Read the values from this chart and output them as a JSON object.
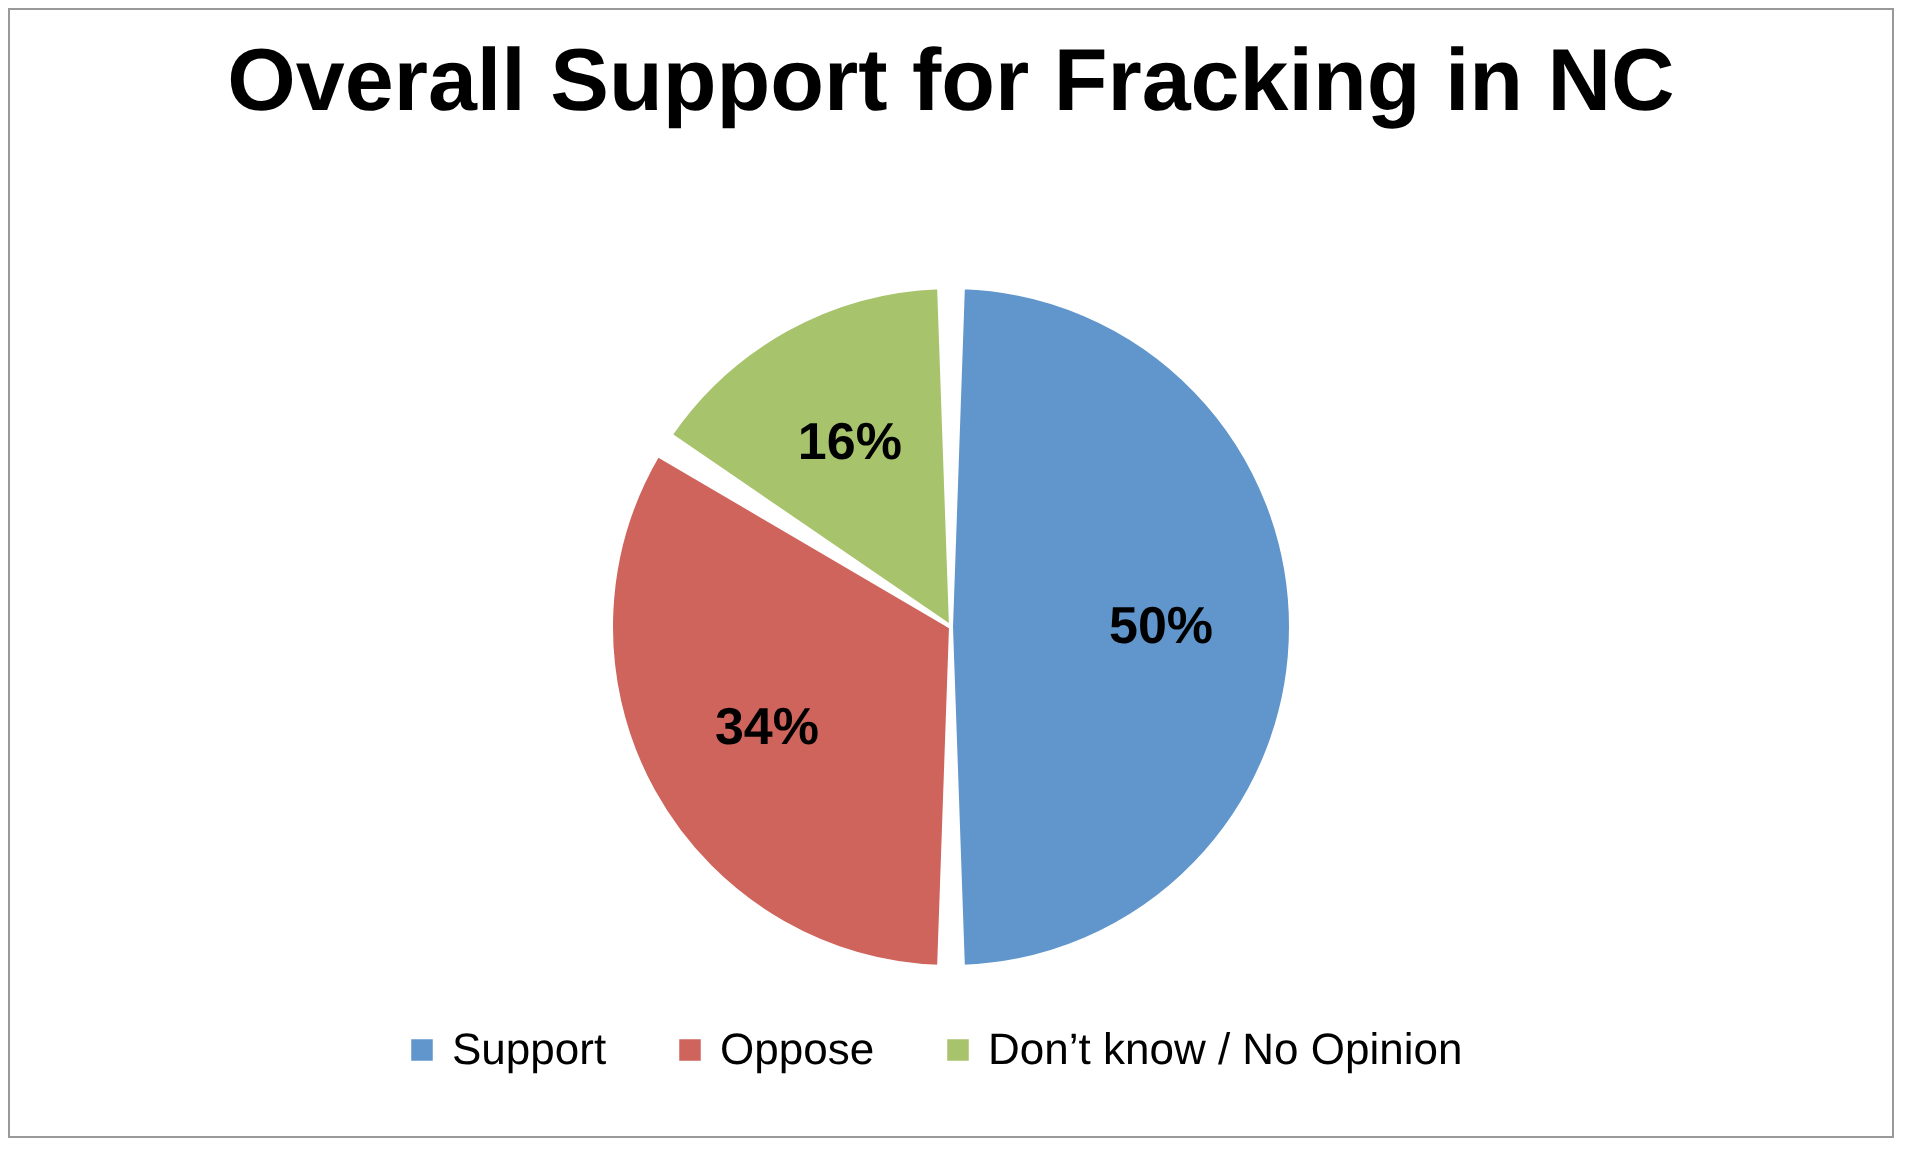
{
  "chart_data": {
    "type": "pie",
    "title": "Overall Support for Fracking in NC",
    "categories": [
      "Support",
      "Oppose",
      "Don’t know / No Opinion"
    ],
    "values": [
      50,
      34,
      16
    ],
    "colors": [
      "#6096cb",
      "#cf645c",
      "#a7c36b"
    ],
    "value_labels": [
      "50%",
      "34%",
      "16%"
    ],
    "legend": "bottom"
  }
}
